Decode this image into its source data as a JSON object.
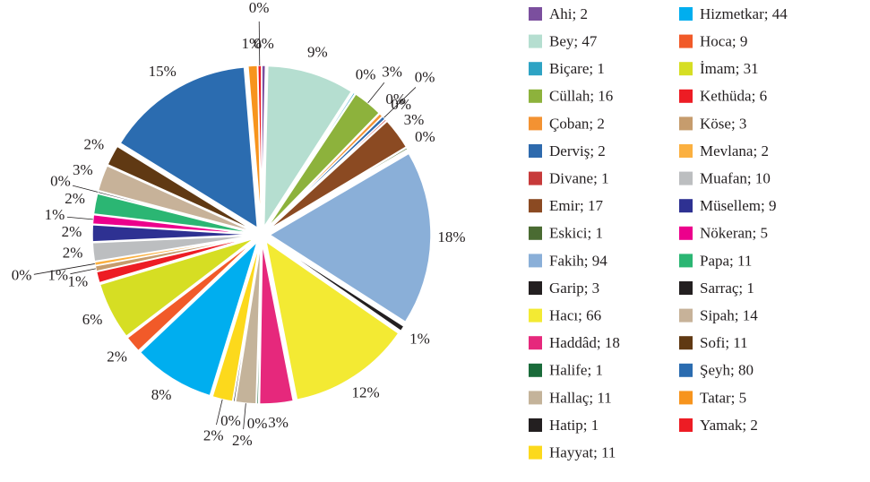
{
  "chart_data": {
    "type": "pie",
    "categories": [
      "Ahi; 2",
      "Bey; 47",
      "Biçare; 1",
      "Cüllah; 16",
      "Çoban; 2",
      "Derviş; 2",
      "Divane; 1",
      "Emir; 17",
      "Eskici; 1",
      "Fakih; 94",
      "Garip; 3",
      "Hacı; 66",
      "Haddâd; 18",
      "Halife; 1",
      "Hallaç; 11",
      "Hatip; 1",
      "Hayyat; 11",
      "Hizmetkar; 44",
      "Hoca; 9",
      "İmam; 31",
      "Kethüda; 6",
      "Köse; 3",
      "Mevlana; 2",
      "Muafan; 10",
      "Müsellem; 9",
      "Nökeran; 5",
      "Papa; 11",
      "Sarraç; 1",
      "Sipah; 14",
      "Sofi; 11",
      "Şeyh; 80",
      "Tatar; 5",
      "Yamak; 2"
    ],
    "values": [
      2,
      47,
      1,
      16,
      2,
      2,
      1,
      17,
      1,
      94,
      3,
      66,
      18,
      1,
      11,
      1,
      11,
      44,
      9,
      31,
      6,
      3,
      2,
      10,
      9,
      5,
      11,
      1,
      14,
      11,
      80,
      5,
      2
    ],
    "value_labels": [
      "0%",
      "9%",
      "0%",
      "3%",
      "0%",
      "0%",
      "0%",
      "3%",
      "0%",
      "18%",
      "1%",
      "12%",
      "3%",
      "0%",
      "2%",
      "0%",
      "2%",
      "8%",
      "2%",
      "6%",
      "1%",
      "1%",
      "0%",
      "2%",
      "2%",
      "1%",
      "2%",
      "0%",
      "3%",
      "2%",
      "15%",
      "1%",
      "0%"
    ],
    "colors": [
      "#7b4f9e",
      "#b5ded0",
      "#2ea3c4",
      "#8db23c",
      "#f39232",
      "#2e6aad",
      "#c73a3a",
      "#8b4a22",
      "#4a6b32",
      "#8aafd8",
      "#231f20",
      "#f3ea33",
      "#e6287c",
      "#1a6b3a",
      "#c4b39a",
      "#231f20",
      "#fcd91c",
      "#00aeef",
      "#f15a29",
      "#d6de23",
      "#ed1c24",
      "#c69c6d",
      "#fbb040",
      "#bcbec0",
      "#2e3192",
      "#ec008c",
      "#2bb673",
      "#231f20",
      "#c7b299",
      "#603913",
      "#2b6cb0",
      "#f7941d",
      "#ed1c24"
    ],
    "legend": "right"
  }
}
